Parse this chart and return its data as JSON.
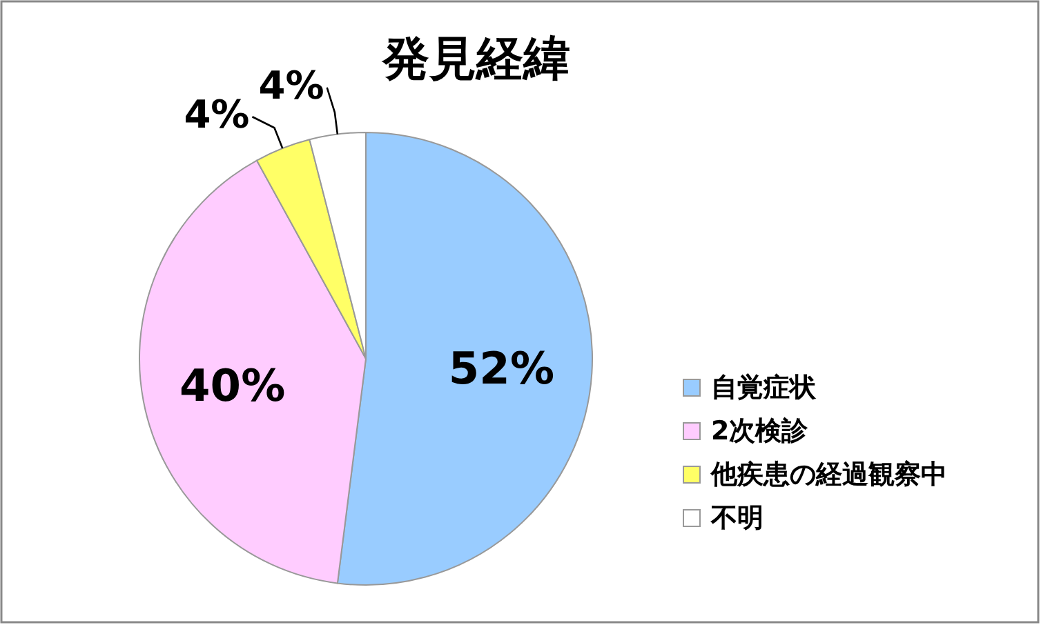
{
  "chart_data": {
    "type": "pie",
    "title": "発見経緯",
    "categories": [
      "自覚症状",
      "2次検診",
      "他疾患の経過観察中",
      "不明"
    ],
    "values": [
      52,
      40,
      4,
      4
    ],
    "colors": [
      "#99ccff",
      "#ffccff",
      "#ffff66",
      "#ffffff"
    ],
    "value_labels": [
      "52%",
      "40%",
      "4%",
      "4%"
    ],
    "legend": "right"
  }
}
